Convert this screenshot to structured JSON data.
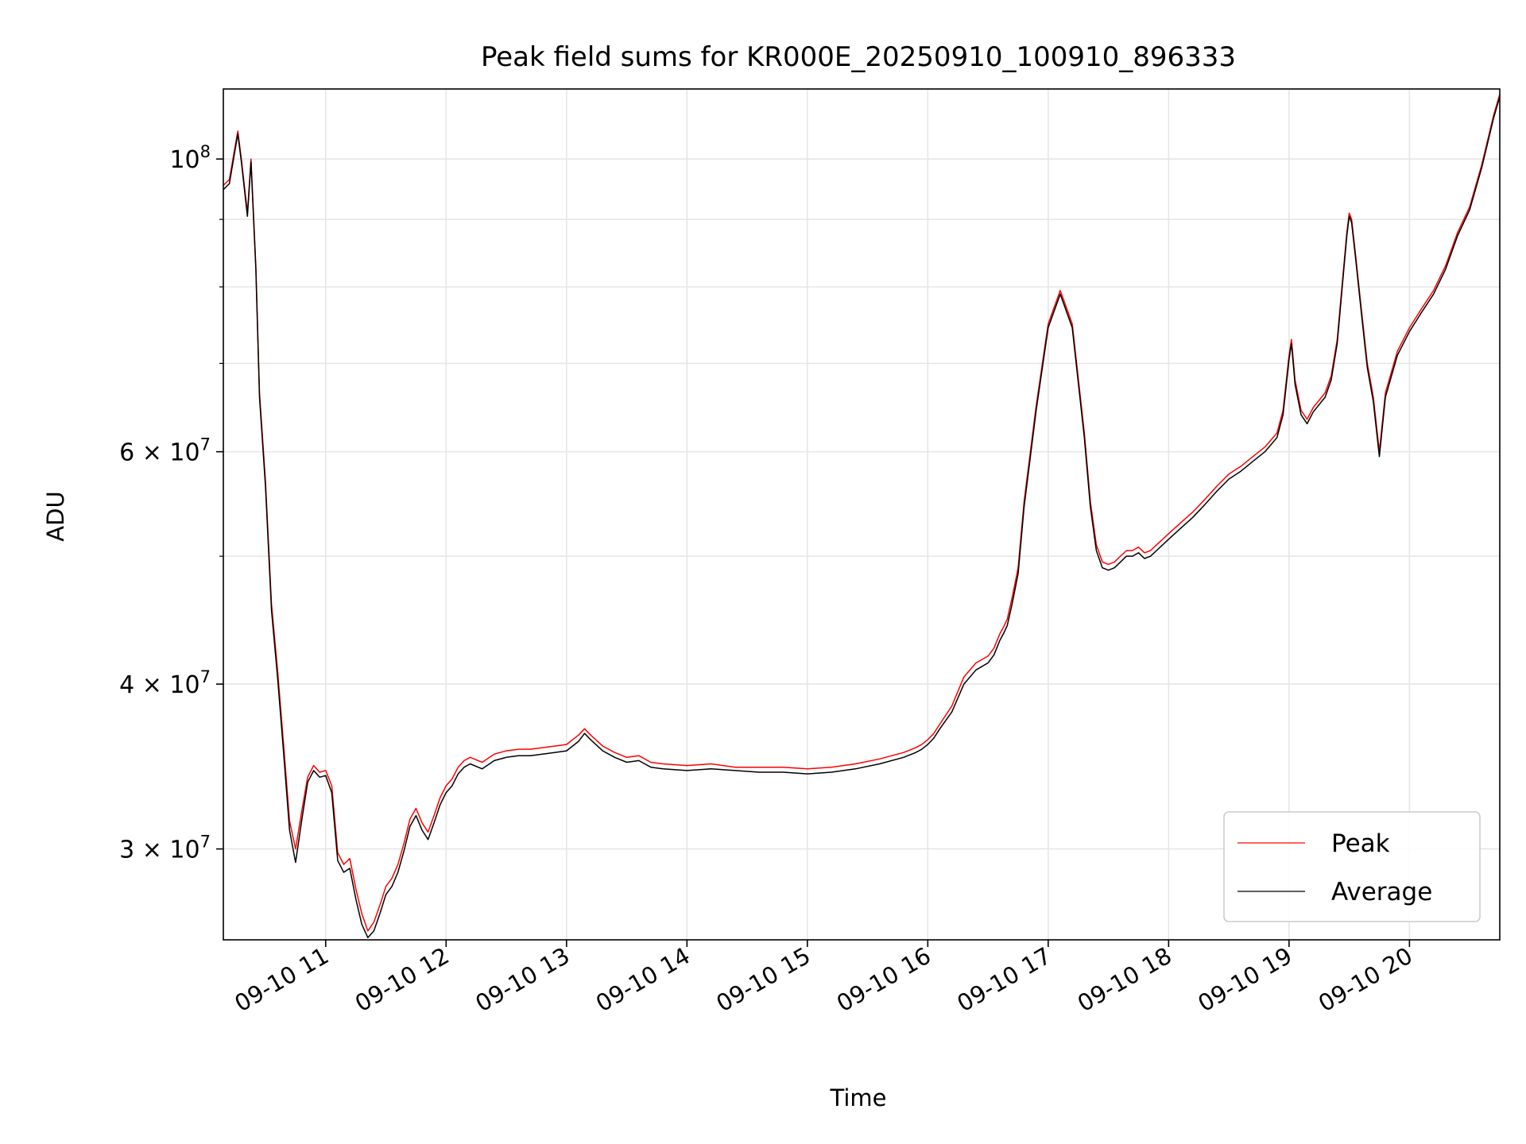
{
  "chart_data": {
    "type": "line",
    "title": "Peak field sums for KR000E_20250910_100910_896333",
    "xlabel": "Time",
    "ylabel": "ADU",
    "x_unit": "time of day on 09-10 (hours)",
    "xlim": [
      10.15,
      20.75
    ],
    "ylim": [
      25600000,
      113000000
    ],
    "yscale": "log",
    "grid": true,
    "legend_position": "lower right",
    "x_ticks": [
      {
        "value": 11,
        "label": "09-10 11"
      },
      {
        "value": 12,
        "label": "09-10 12"
      },
      {
        "value": 13,
        "label": "09-10 13"
      },
      {
        "value": 14,
        "label": "09-10 14"
      },
      {
        "value": 15,
        "label": "09-10 15"
      },
      {
        "value": 16,
        "label": "09-10 16"
      },
      {
        "value": 17,
        "label": "09-10 17"
      },
      {
        "value": 18,
        "label": "09-10 18"
      },
      {
        "value": 19,
        "label": "09-10 19"
      },
      {
        "value": 20,
        "label": "09-10 20"
      }
    ],
    "y_ticks": [
      {
        "value": 30000000,
        "base": "3",
        "exp": "7",
        "times": "×",
        "ten": "10"
      },
      {
        "value": 40000000,
        "base": "4",
        "exp": "7",
        "times": "×",
        "ten": "10"
      },
      {
        "value": 60000000,
        "base": "6",
        "exp": "7",
        "times": "×",
        "ten": "10"
      },
      {
        "value": 100000000,
        "base": "",
        "exp": "8",
        "times": "",
        "ten": "10"
      }
    ],
    "y_minor_ticks": [
      50000000,
      70000000,
      80000000,
      90000000
    ],
    "series": [
      {
        "name": "Peak",
        "color": "#ff0000",
        "x": [
          10.15,
          10.2,
          10.27,
          10.3,
          10.35,
          10.38,
          10.42,
          10.45,
          10.5,
          10.55,
          10.6,
          10.65,
          10.7,
          10.75,
          10.8,
          10.85,
          10.9,
          10.95,
          11.0,
          11.05,
          11.1,
          11.15,
          11.2,
          11.25,
          11.3,
          11.35,
          11.4,
          11.45,
          11.5,
          11.55,
          11.6,
          11.65,
          11.7,
          11.75,
          11.8,
          11.85,
          11.9,
          11.95,
          12.0,
          12.05,
          12.1,
          12.15,
          12.2,
          12.3,
          12.4,
          12.5,
          12.6,
          12.7,
          12.8,
          12.9,
          13.0,
          13.1,
          13.15,
          13.2,
          13.3,
          13.4,
          13.5,
          13.6,
          13.7,
          13.8,
          14.0,
          14.2,
          14.4,
          14.6,
          14.8,
          15.0,
          15.2,
          15.4,
          15.6,
          15.8,
          15.9,
          15.95,
          16.0,
          16.05,
          16.1,
          16.2,
          16.3,
          16.4,
          16.5,
          16.55,
          16.6,
          16.63,
          16.66,
          16.7,
          16.75,
          16.8,
          16.9,
          17.0,
          17.1,
          17.2,
          17.3,
          17.35,
          17.4,
          17.45,
          17.5,
          17.55,
          17.6,
          17.65,
          17.7,
          17.75,
          17.8,
          17.85,
          17.9,
          17.95,
          18.0,
          18.1,
          18.2,
          18.3,
          18.4,
          18.5,
          18.6,
          18.7,
          18.8,
          18.9,
          18.95,
          19.0,
          19.02,
          19.05,
          19.1,
          19.15,
          19.2,
          19.3,
          19.35,
          19.4,
          19.45,
          19.48,
          19.5,
          19.52,
          19.55,
          19.6,
          19.65,
          19.7,
          19.75,
          19.8,
          19.9,
          20.0,
          20.1,
          20.2,
          20.3,
          20.4,
          20.5,
          20.6,
          20.7,
          20.75
        ],
        "y": [
          95500000,
          96500000,
          105000000,
          100000000,
          91000000,
          100000000,
          83000000,
          66500000,
          57000000,
          46000000,
          41000000,
          36000000,
          31500000,
          30000000,
          32000000,
          34000000,
          34700000,
          34300000,
          34400000,
          33500000,
          29800000,
          29200000,
          29500000,
          28000000,
          26800000,
          26000000,
          26400000,
          27200000,
          28100000,
          28500000,
          29200000,
          30300000,
          31600000,
          32200000,
          31400000,
          30900000,
          31800000,
          32800000,
          33500000,
          33900000,
          34600000,
          35000000,
          35200000,
          34900000,
          35400000,
          35600000,
          35700000,
          35700000,
          35800000,
          35900000,
          36000000,
          36600000,
          37000000,
          36600000,
          35900000,
          35500000,
          35200000,
          35300000,
          34900000,
          34800000,
          34700000,
          34800000,
          34600000,
          34600000,
          34600000,
          34500000,
          34600000,
          34800000,
          35100000,
          35500000,
          35800000,
          36000000,
          36300000,
          36700000,
          37300000,
          38500000,
          40500000,
          41500000,
          42000000,
          42600000,
          43700000,
          44200000,
          44800000,
          46500000,
          49000000,
          55000000,
          65000000,
          75000000,
          79500000,
          75000000,
          62000000,
          55000000,
          51000000,
          49500000,
          49300000,
          49500000,
          50000000,
          50500000,
          50500000,
          50800000,
          50300000,
          50500000,
          51000000,
          51500000,
          52000000,
          53000000,
          54000000,
          55200000,
          56500000,
          57700000,
          58500000,
          59500000,
          60500000,
          62000000,
          64500000,
          71000000,
          73000000,
          68000000,
          64500000,
          63500000,
          64800000,
          66500000,
          68500000,
          73000000,
          82000000,
          88000000,
          91000000,
          90000000,
          85000000,
          77000000,
          70000000,
          66000000,
          60000000,
          66500000,
          71500000,
          74500000,
          77000000,
          79500000,
          83000000,
          88000000,
          92000000,
          99000000,
          108000000,
          112000000
        ]
      },
      {
        "name": "Average",
        "color": "#000000",
        "x": [
          10.15,
          10.2,
          10.27,
          10.3,
          10.35,
          10.38,
          10.42,
          10.45,
          10.5,
          10.55,
          10.6,
          10.65,
          10.7,
          10.75,
          10.8,
          10.85,
          10.9,
          10.95,
          11.0,
          11.05,
          11.1,
          11.15,
          11.2,
          11.25,
          11.3,
          11.35,
          11.4,
          11.45,
          11.5,
          11.55,
          11.6,
          11.65,
          11.7,
          11.75,
          11.8,
          11.85,
          11.9,
          11.95,
          12.0,
          12.05,
          12.1,
          12.15,
          12.2,
          12.3,
          12.4,
          12.5,
          12.6,
          12.7,
          12.8,
          12.9,
          13.0,
          13.1,
          13.15,
          13.2,
          13.3,
          13.4,
          13.5,
          13.6,
          13.7,
          13.8,
          14.0,
          14.2,
          14.4,
          14.6,
          14.8,
          15.0,
          15.2,
          15.4,
          15.6,
          15.8,
          15.9,
          15.95,
          16.0,
          16.05,
          16.1,
          16.2,
          16.3,
          16.4,
          16.5,
          16.55,
          16.6,
          16.63,
          16.66,
          16.7,
          16.75,
          16.8,
          16.9,
          17.0,
          17.1,
          17.2,
          17.3,
          17.35,
          17.4,
          17.45,
          17.5,
          17.55,
          17.6,
          17.65,
          17.7,
          17.75,
          17.8,
          17.85,
          17.9,
          17.95,
          18.0,
          18.1,
          18.2,
          18.3,
          18.4,
          18.5,
          18.6,
          18.7,
          18.8,
          18.9,
          18.95,
          19.0,
          19.02,
          19.05,
          19.1,
          19.15,
          19.2,
          19.3,
          19.35,
          19.4,
          19.45,
          19.48,
          19.5,
          19.52,
          19.55,
          19.6,
          19.65,
          19.7,
          19.75,
          19.8,
          19.9,
          20.0,
          20.1,
          20.2,
          20.3,
          20.4,
          20.5,
          20.6,
          20.7,
          20.75
        ],
        "y": [
          94800000,
          95800000,
          104500000,
          99500000,
          90500000,
          99500000,
          82500000,
          66000000,
          56500000,
          45500000,
          40500000,
          35500000,
          31000000,
          29300000,
          31500000,
          33700000,
          34400000,
          34000000,
          34100000,
          33100000,
          29400000,
          28800000,
          29000000,
          27500000,
          26300000,
          25700000,
          26000000,
          26800000,
          27700000,
          28100000,
          28800000,
          29900000,
          31200000,
          31800000,
          31000000,
          30500000,
          31400000,
          32400000,
          33100000,
          33500000,
          34200000,
          34600000,
          34800000,
          34500000,
          35000000,
          35200000,
          35300000,
          35300000,
          35400000,
          35500000,
          35600000,
          36200000,
          36700000,
          36300000,
          35600000,
          35200000,
          34900000,
          35000000,
          34600000,
          34500000,
          34400000,
          34500000,
          34400000,
          34300000,
          34300000,
          34200000,
          34300000,
          34500000,
          34800000,
          35200000,
          35500000,
          35700000,
          36000000,
          36400000,
          37000000,
          38100000,
          40000000,
          41000000,
          41500000,
          42100000,
          43200000,
          43700000,
          44300000,
          46000000,
          48500000,
          54500000,
          64500000,
          74500000,
          79000000,
          74500000,
          61500000,
          54500000,
          50500000,
          49000000,
          48800000,
          49000000,
          49500000,
          50000000,
          50000000,
          50300000,
          49800000,
          50000000,
          50500000,
          51000000,
          51500000,
          52500000,
          53500000,
          54700000,
          56000000,
          57200000,
          58000000,
          59000000,
          60000000,
          61500000,
          64000000,
          70500000,
          72500000,
          67500000,
          64000000,
          63000000,
          64300000,
          66000000,
          68000000,
          72500000,
          81500000,
          87500000,
          90500000,
          89500000,
          84500000,
          76500000,
          69500000,
          65500000,
          59500000,
          66000000,
          71000000,
          74000000,
          76500000,
          79000000,
          82500000,
          87500000,
          91500000,
          98500000,
          107500000,
          111500000
        ]
      }
    ]
  }
}
